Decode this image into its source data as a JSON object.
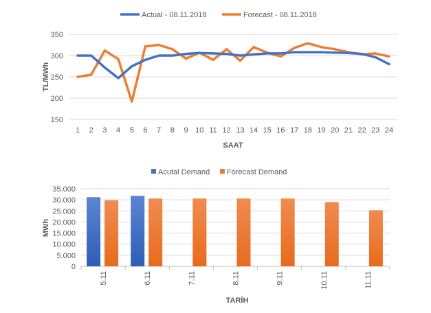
{
  "colors": {
    "actual": "#4472C4",
    "forecast": "#ED7D31",
    "grid": "#D9D9D9",
    "text": "#595959"
  },
  "chart_data": [
    {
      "type": "line",
      "title": "",
      "xlabel": "SAAT",
      "ylabel": "TL/MWh",
      "ylim": [
        150,
        350
      ],
      "yticks": [
        150,
        200,
        250,
        300,
        350
      ],
      "grid": true,
      "legend_position": "top",
      "x": [
        "1",
        "2",
        "3",
        "4",
        "5",
        "6",
        "7",
        "8",
        "9",
        "10",
        "11",
        "12",
        "13",
        "14",
        "15",
        "16",
        "17",
        "18",
        "19",
        "20",
        "21",
        "22",
        "23",
        "24"
      ],
      "series": [
        {
          "name": "Actual - 08.11.2018",
          "values": [
            300,
            300,
            272,
            247,
            275,
            290,
            300,
            300,
            304,
            306,
            305,
            304,
            300,
            303,
            305,
            305,
            308,
            308,
            308,
            307,
            306,
            304,
            296,
            280
          ]
        },
        {
          "name": "Forecast - 08.11.2018",
          "values": [
            250,
            255,
            312,
            292,
            192,
            322,
            325,
            315,
            293,
            307,
            290,
            315,
            288,
            320,
            307,
            298,
            318,
            329,
            320,
            315,
            308,
            303,
            305,
            298
          ]
        }
      ]
    },
    {
      "type": "bar",
      "title": "",
      "xlabel": "TARİH",
      "ylabel": "MWh",
      "ylim": [
        0,
        35000
      ],
      "yticks": [
        "0",
        "5.000",
        "10.000",
        "15.000",
        "20.000",
        "25.000",
        "30.000",
        "35.000"
      ],
      "grid": true,
      "legend_position": "top",
      "categories": [
        "5.11",
        "6.11",
        "7.11",
        "8.11",
        "9.11",
        "10.11",
        "11.11"
      ],
      "series": [
        {
          "name": "Acutal Demand",
          "values": [
            31200,
            31800,
            null,
            null,
            null,
            null,
            null
          ]
        },
        {
          "name": "Forecast Demand",
          "values": [
            29800,
            30600,
            30600,
            30600,
            30600,
            29000,
            25300
          ]
        }
      ]
    }
  ]
}
